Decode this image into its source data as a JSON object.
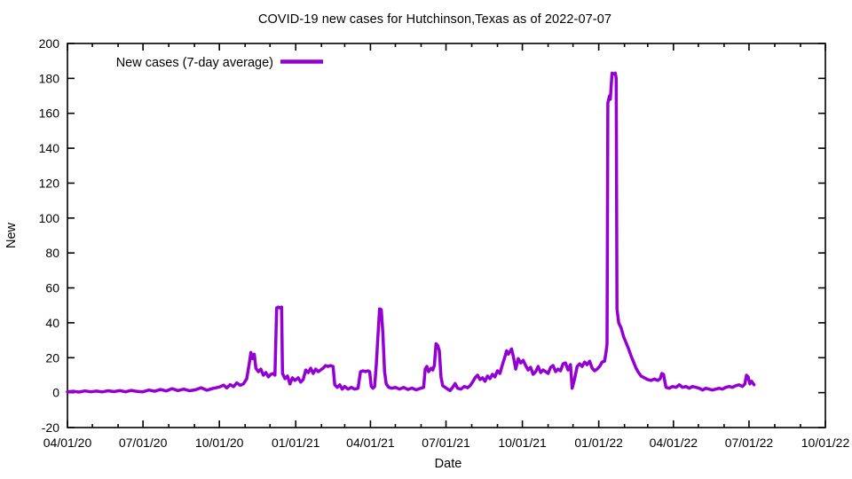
{
  "chart_data": {
    "type": "line",
    "title": "COVID-19 new cases for Hutchinson,Texas as of 2022-07-07",
    "xlabel": "Date",
    "ylabel": "New",
    "legend_position": "top-left",
    "grid": false,
    "line_color": "#9400d3",
    "axis_color": "#000000",
    "background_color": "#ffffff",
    "ylim": [
      -20,
      200
    ],
    "y_ticks": [
      -20,
      0,
      20,
      40,
      60,
      80,
      100,
      120,
      140,
      160,
      180,
      200
    ],
    "x_range": [
      "2020-04-01",
      "2022-10-01"
    ],
    "x_minor_tick_interval": "1 month",
    "x_ticks": [
      {
        "date": "2020-04-01",
        "label": "04/01/20"
      },
      {
        "date": "2020-07-01",
        "label": "07/01/20"
      },
      {
        "date": "2020-10-01",
        "label": "10/01/20"
      },
      {
        "date": "2021-01-01",
        "label": "01/01/21"
      },
      {
        "date": "2021-04-01",
        "label": "04/01/21"
      },
      {
        "date": "2021-07-01",
        "label": "07/01/21"
      },
      {
        "date": "2021-10-01",
        "label": "10/01/21"
      },
      {
        "date": "2022-01-01",
        "label": "01/01/22"
      },
      {
        "date": "2022-04-01",
        "label": "04/01/22"
      },
      {
        "date": "2022-07-01",
        "label": "07/01/22"
      },
      {
        "date": "2022-10-01",
        "label": "10/01/22"
      }
    ],
    "series": [
      {
        "name": "New cases (7-day average)",
        "color": "#9400d3",
        "points": [
          [
            "2020-04-01",
            0.4
          ],
          [
            "2020-04-08",
            0.8
          ],
          [
            "2020-04-15",
            0.3
          ],
          [
            "2020-04-22",
            1.0
          ],
          [
            "2020-04-29",
            0.5
          ],
          [
            "2020-05-06",
            0.9
          ],
          [
            "2020-05-13",
            0.4
          ],
          [
            "2020-05-20",
            1.1
          ],
          [
            "2020-05-27",
            0.6
          ],
          [
            "2020-06-03",
            1.2
          ],
          [
            "2020-06-10",
            0.5
          ],
          [
            "2020-06-17",
            1.3
          ],
          [
            "2020-06-24",
            0.7
          ],
          [
            "2020-07-01",
            0.5
          ],
          [
            "2020-07-08",
            1.5
          ],
          [
            "2020-07-15",
            0.8
          ],
          [
            "2020-07-22",
            1.8
          ],
          [
            "2020-07-29",
            1.0
          ],
          [
            "2020-08-05",
            2.3
          ],
          [
            "2020-08-12",
            1.2
          ],
          [
            "2020-08-19",
            2.0
          ],
          [
            "2020-08-26",
            1.1
          ],
          [
            "2020-09-02",
            1.6
          ],
          [
            "2020-09-09",
            2.8
          ],
          [
            "2020-09-16",
            1.4
          ],
          [
            "2020-09-23",
            2.4
          ],
          [
            "2020-10-01",
            3.2
          ],
          [
            "2020-10-06",
            4.3
          ],
          [
            "2020-10-10",
            2.7
          ],
          [
            "2020-10-14",
            4.6
          ],
          [
            "2020-10-18",
            3.4
          ],
          [
            "2020-10-22",
            5.6
          ],
          [
            "2020-10-26",
            4.2
          ],
          [
            "2020-10-30",
            5.0
          ],
          [
            "2020-11-03",
            8.0
          ],
          [
            "2020-11-06",
            16.5
          ],
          [
            "2020-11-08",
            23.0
          ],
          [
            "2020-11-10",
            19.5
          ],
          [
            "2020-11-12",
            22.0
          ],
          [
            "2020-11-14",
            14.0
          ],
          [
            "2020-11-17",
            12.0
          ],
          [
            "2020-11-20",
            13.5
          ],
          [
            "2020-11-23",
            10.0
          ],
          [
            "2020-11-26",
            11.5
          ],
          [
            "2020-11-29",
            9.0
          ],
          [
            "2020-12-02",
            10.5
          ],
          [
            "2020-12-05",
            11.0
          ],
          [
            "2020-12-07",
            10.0
          ],
          [
            "2020-12-09",
            48.5
          ],
          [
            "2020-12-11",
            49.0
          ],
          [
            "2020-12-13",
            48.5
          ],
          [
            "2020-12-15",
            49.0
          ],
          [
            "2020-12-16",
            11.0
          ],
          [
            "2020-12-19",
            8.0
          ],
          [
            "2020-12-22",
            9.5
          ],
          [
            "2020-12-25",
            5.0
          ],
          [
            "2020-12-28",
            8.5
          ],
          [
            "2020-12-31",
            7.0
          ],
          [
            "2021-01-04",
            8.5
          ],
          [
            "2021-01-07",
            6.0
          ],
          [
            "2021-01-10",
            7.5
          ],
          [
            "2021-01-13",
            13.0
          ],
          [
            "2021-01-16",
            11.5
          ],
          [
            "2021-01-19",
            14.0
          ],
          [
            "2021-01-22",
            11.0
          ],
          [
            "2021-01-25",
            13.5
          ],
          [
            "2021-01-28",
            12.0
          ],
          [
            "2021-01-31",
            13.0
          ],
          [
            "2021-02-03",
            14.0
          ],
          [
            "2021-02-06",
            15.5
          ],
          [
            "2021-02-09",
            15.0
          ],
          [
            "2021-02-12",
            15.5
          ],
          [
            "2021-02-15",
            15.0
          ],
          [
            "2021-02-17",
            4.5
          ],
          [
            "2021-02-20",
            3.0
          ],
          [
            "2021-02-23",
            4.5
          ],
          [
            "2021-02-26",
            2.0
          ],
          [
            "2021-03-01",
            3.5
          ],
          [
            "2021-03-05",
            2.0
          ],
          [
            "2021-03-09",
            3.0
          ],
          [
            "2021-03-13",
            2.0
          ],
          [
            "2021-03-17",
            2.5
          ],
          [
            "2021-03-20",
            12.0
          ],
          [
            "2021-03-23",
            12.5
          ],
          [
            "2021-03-26",
            12.0
          ],
          [
            "2021-03-29",
            12.5
          ],
          [
            "2021-03-31",
            12.0
          ],
          [
            "2021-04-02",
            3.5
          ],
          [
            "2021-04-04",
            2.5
          ],
          [
            "2021-04-06",
            3.5
          ],
          [
            "2021-04-08",
            16.0
          ],
          [
            "2021-04-10",
            32.0
          ],
          [
            "2021-04-12",
            48.0
          ],
          [
            "2021-04-14",
            47.5
          ],
          [
            "2021-04-16",
            34.0
          ],
          [
            "2021-04-18",
            12.0
          ],
          [
            "2021-04-20",
            5.0
          ],
          [
            "2021-04-23",
            3.0
          ],
          [
            "2021-04-27",
            2.5
          ],
          [
            "2021-05-01",
            3.0
          ],
          [
            "2021-05-06",
            2.0
          ],
          [
            "2021-05-11",
            3.0
          ],
          [
            "2021-05-16",
            1.8
          ],
          [
            "2021-05-21",
            2.6
          ],
          [
            "2021-05-26",
            1.6
          ],
          [
            "2021-05-31",
            2.4
          ],
          [
            "2021-06-04",
            3.0
          ],
          [
            "2021-06-06",
            13.5
          ],
          [
            "2021-06-08",
            15.0
          ],
          [
            "2021-06-10",
            12.0
          ],
          [
            "2021-06-13",
            14.0
          ],
          [
            "2021-06-15",
            13.0
          ],
          [
            "2021-06-17",
            15.5
          ],
          [
            "2021-06-19",
            28.0
          ],
          [
            "2021-06-21",
            27.0
          ],
          [
            "2021-06-23",
            24.0
          ],
          [
            "2021-06-25",
            9.0
          ],
          [
            "2021-06-27",
            4.0
          ],
          [
            "2021-06-30",
            3.0
          ],
          [
            "2021-07-03",
            2.0
          ],
          [
            "2021-07-06",
            1.2
          ],
          [
            "2021-07-09",
            3.0
          ],
          [
            "2021-07-12",
            5.2
          ],
          [
            "2021-07-15",
            2.5
          ],
          [
            "2021-07-19",
            2.0
          ],
          [
            "2021-07-23",
            3.5
          ],
          [
            "2021-07-27",
            2.8
          ],
          [
            "2021-07-30",
            4.0
          ],
          [
            "2021-08-02",
            6.0
          ],
          [
            "2021-08-05",
            8.5
          ],
          [
            "2021-08-08",
            10.0
          ],
          [
            "2021-08-11",
            7.5
          ],
          [
            "2021-08-14",
            8.5
          ],
          [
            "2021-08-17",
            6.5
          ],
          [
            "2021-08-20",
            9.5
          ],
          [
            "2021-08-23",
            8.0
          ],
          [
            "2021-08-26",
            10.5
          ],
          [
            "2021-08-29",
            9.0
          ],
          [
            "2021-09-01",
            12.5
          ],
          [
            "2021-09-04",
            11.0
          ],
          [
            "2021-09-07",
            16.0
          ],
          [
            "2021-09-10",
            20.5
          ],
          [
            "2021-09-12",
            24.0
          ],
          [
            "2021-09-14",
            22.0
          ],
          [
            "2021-09-16",
            23.5
          ],
          [
            "2021-09-18",
            25.0
          ],
          [
            "2021-09-20",
            21.0
          ],
          [
            "2021-09-23",
            13.5
          ],
          [
            "2021-09-26",
            19.5
          ],
          [
            "2021-09-29",
            17.0
          ],
          [
            "2021-10-02",
            18.5
          ],
          [
            "2021-10-05",
            15.5
          ],
          [
            "2021-10-08",
            13.0
          ],
          [
            "2021-10-11",
            14.5
          ],
          [
            "2021-10-14",
            10.5
          ],
          [
            "2021-10-17",
            12.0
          ],
          [
            "2021-10-20",
            15.0
          ],
          [
            "2021-10-23",
            11.5
          ],
          [
            "2021-10-26",
            13.0
          ],
          [
            "2021-10-29",
            12.0
          ],
          [
            "2021-11-01",
            11.0
          ],
          [
            "2021-11-04",
            14.5
          ],
          [
            "2021-11-07",
            15.5
          ],
          [
            "2021-11-10",
            12.0
          ],
          [
            "2021-11-13",
            13.5
          ],
          [
            "2021-11-16",
            12.5
          ],
          [
            "2021-11-19",
            16.5
          ],
          [
            "2021-11-22",
            17.0
          ],
          [
            "2021-11-25",
            13.0
          ],
          [
            "2021-11-28",
            16.0
          ],
          [
            "2021-11-30",
            2.5
          ],
          [
            "2021-12-03",
            8.0
          ],
          [
            "2021-12-06",
            15.0
          ],
          [
            "2021-12-09",
            16.5
          ],
          [
            "2021-12-12",
            15.0
          ],
          [
            "2021-12-15",
            17.5
          ],
          [
            "2021-12-18",
            16.0
          ],
          [
            "2021-12-21",
            18.0
          ],
          [
            "2021-12-24",
            14.0
          ],
          [
            "2021-12-27",
            12.5
          ],
          [
            "2021-12-30",
            13.5
          ],
          [
            "2022-01-02",
            15.0
          ],
          [
            "2022-01-05",
            17.5
          ],
          [
            "2022-01-08",
            18.0
          ],
          [
            "2022-01-10",
            24.0
          ],
          [
            "2022-01-11",
            28.0
          ],
          [
            "2022-01-12",
            166.0
          ],
          [
            "2022-01-14",
            170.0
          ],
          [
            "2022-01-15",
            168.0
          ],
          [
            "2022-01-17",
            183.0
          ],
          [
            "2022-01-19",
            182.5
          ],
          [
            "2022-01-21",
            183.0
          ],
          [
            "2022-01-22",
            180.0
          ],
          [
            "2022-01-23",
            48.0
          ],
          [
            "2022-01-25",
            40.0
          ],
          [
            "2022-01-28",
            37.0
          ],
          [
            "2022-01-31",
            32.0
          ],
          [
            "2022-02-03",
            28.5
          ],
          [
            "2022-02-06",
            25.0
          ],
          [
            "2022-02-09",
            21.0
          ],
          [
            "2022-02-12",
            17.5
          ],
          [
            "2022-02-15",
            14.0
          ],
          [
            "2022-02-18",
            11.5
          ],
          [
            "2022-02-21",
            9.5
          ],
          [
            "2022-02-25",
            8.5
          ],
          [
            "2022-03-01",
            7.5
          ],
          [
            "2022-03-05",
            7.0
          ],
          [
            "2022-03-09",
            7.8
          ],
          [
            "2022-03-13",
            7.0
          ],
          [
            "2022-03-16",
            8.0
          ],
          [
            "2022-03-18",
            11.0
          ],
          [
            "2022-03-20",
            10.5
          ],
          [
            "2022-03-23",
            3.0
          ],
          [
            "2022-03-27",
            2.5
          ],
          [
            "2022-03-31",
            3.5
          ],
          [
            "2022-04-04",
            3.0
          ],
          [
            "2022-04-08",
            4.5
          ],
          [
            "2022-04-12",
            3.0
          ],
          [
            "2022-04-16",
            3.5
          ],
          [
            "2022-04-20",
            2.5
          ],
          [
            "2022-04-24",
            3.5
          ],
          [
            "2022-04-28",
            3.0
          ],
          [
            "2022-05-02",
            2.5
          ],
          [
            "2022-05-06",
            1.5
          ],
          [
            "2022-05-10",
            2.5
          ],
          [
            "2022-05-14",
            2.0
          ],
          [
            "2022-05-18",
            1.5
          ],
          [
            "2022-05-22",
            2.0
          ],
          [
            "2022-05-26",
            2.5
          ],
          [
            "2022-05-30",
            2.0
          ],
          [
            "2022-06-03",
            3.0
          ],
          [
            "2022-06-07",
            3.5
          ],
          [
            "2022-06-11",
            3.0
          ],
          [
            "2022-06-15",
            4.0
          ],
          [
            "2022-06-19",
            4.5
          ],
          [
            "2022-06-23",
            3.5
          ],
          [
            "2022-06-26",
            5.0
          ],
          [
            "2022-06-28",
            10.0
          ],
          [
            "2022-06-30",
            9.0
          ],
          [
            "2022-07-02",
            5.0
          ],
          [
            "2022-07-04",
            6.5
          ],
          [
            "2022-07-07",
            4.5
          ]
        ]
      }
    ]
  }
}
